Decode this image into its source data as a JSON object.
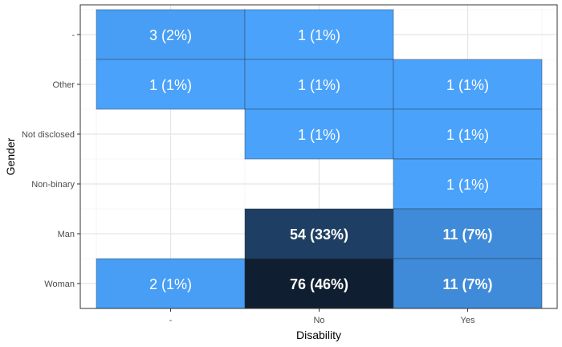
{
  "chart_data": {
    "type": "heatmap",
    "title": "",
    "xlabel": "Disability",
    "ylabel": "Gender",
    "x_categories": [
      "-",
      "No",
      "Yes"
    ],
    "y_categories": [
      "Woman",
      "Man",
      "Non-binary",
      "Not disclosed",
      "Other",
      "-"
    ],
    "cells": [
      {
        "x": "-",
        "y": "-",
        "count": 3,
        "label": "3 (2%)"
      },
      {
        "x": "No",
        "y": "-",
        "count": 1,
        "label": "1 (1%)"
      },
      {
        "x": "-",
        "y": "Other",
        "count": 1,
        "label": "1 (1%)"
      },
      {
        "x": "No",
        "y": "Other",
        "count": 1,
        "label": "1 (1%)"
      },
      {
        "x": "Yes",
        "y": "Other",
        "count": 1,
        "label": "1 (1%)"
      },
      {
        "x": "No",
        "y": "Not disclosed",
        "count": 1,
        "label": "1 (1%)"
      },
      {
        "x": "Yes",
        "y": "Not disclosed",
        "count": 1,
        "label": "1 (1%)"
      },
      {
        "x": "Yes",
        "y": "Non-binary",
        "count": 1,
        "label": "1 (1%)"
      },
      {
        "x": "No",
        "y": "Man",
        "count": 54,
        "label": "54 (33%)"
      },
      {
        "x": "Yes",
        "y": "Man",
        "count": 11,
        "label": "11 (7%)"
      },
      {
        "x": "-",
        "y": "Woman",
        "count": 2,
        "label": "2 (1%)"
      },
      {
        "x": "No",
        "y": "Woman",
        "count": 76,
        "label": "76 (46%)"
      },
      {
        "x": "Yes",
        "y": "Woman",
        "count": 11,
        "label": "11 (7%)"
      }
    ],
    "color_scale": {
      "low": "#4ba3fb",
      "mid": "#3d85d2",
      "high": "#0f1e30"
    },
    "grid": true,
    "legend": "none"
  }
}
